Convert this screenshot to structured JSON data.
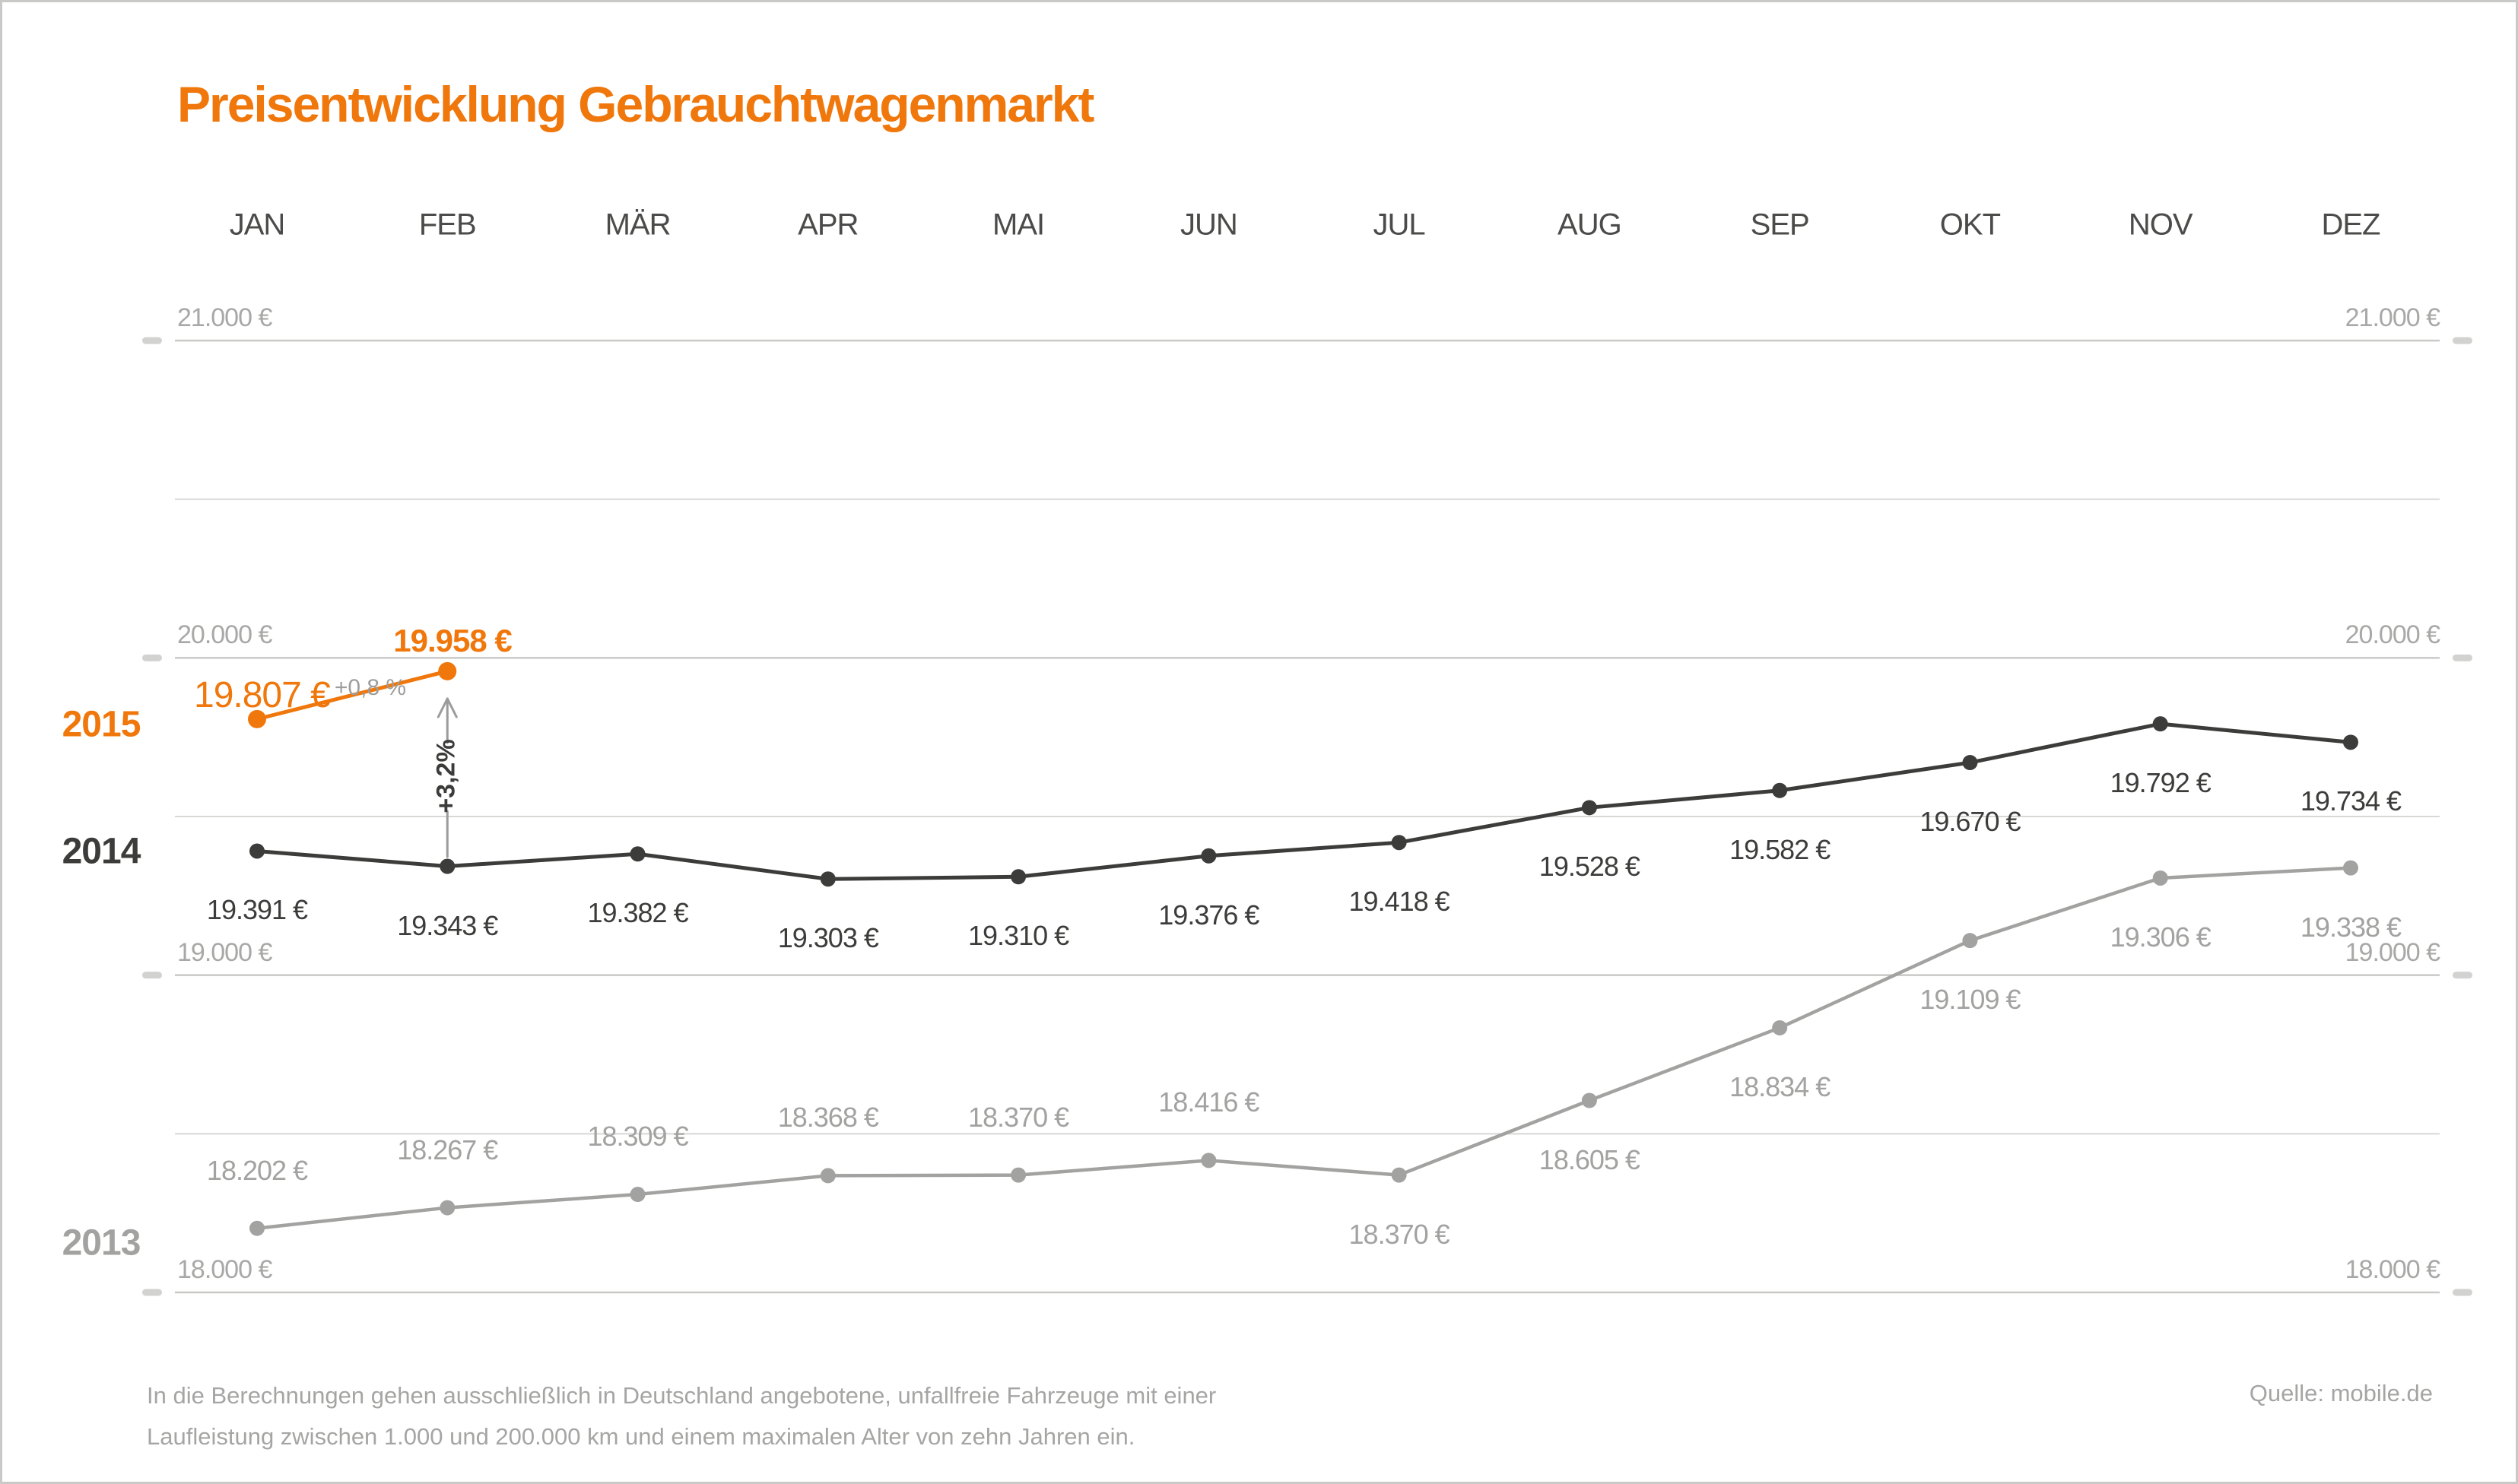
{
  "title": "Preisentwicklung Gebrauchtwagenmarkt",
  "months": [
    "JAN",
    "FEB",
    "MÄR",
    "APR",
    "MAI",
    "JUN",
    "JUL",
    "AUG",
    "SEP",
    "OKT",
    "NOV",
    "DEZ"
  ],
  "series_labels": {
    "y2015": "2015",
    "y2014": "2014",
    "y2013": "2013"
  },
  "annotations": {
    "jan_2015_value": "19.807 €",
    "jan_feb_change": "+0,8 %",
    "feb_2015_value": "19.958 €",
    "yoy_change": "+3,2%"
  },
  "footnote": {
    "line1": "In die Berechnungen gehen ausschließlich in Deutschland angebotene, unfallfreie Fahrzeuge mit einer",
    "line2": "Laufleistung zwischen 1.000 und 200.000 km und einem maximalen Alter von zehn Jahren ein."
  },
  "source": "Quelle: mobile.de",
  "colors": {
    "accent": "#f0770b",
    "dark": "#3c3c3b",
    "gray": "#a2a2a1",
    "axis_text": "#a8a8a7",
    "month_text": "#4b4b4a",
    "grid_major": "#c9c9c8",
    "grid_minor": "#d8d8d7",
    "tick": "#d2d2d1",
    "arrow": "#9b9b9a"
  },
  "chart_data": {
    "type": "line",
    "categories": [
      "JAN",
      "FEB",
      "MÄR",
      "APR",
      "MAI",
      "JUN",
      "JUL",
      "AUG",
      "SEP",
      "OKT",
      "NOV",
      "DEZ"
    ],
    "series": [
      {
        "name": "2015",
        "color": "#f0770b",
        "values": [
          19807,
          19958
        ],
        "labels": [
          "19.807 €",
          "19.958 €"
        ]
      },
      {
        "name": "2014",
        "color": "#3c3c3b",
        "values": [
          19391,
          19343,
          19382,
          19303,
          19310,
          19376,
          19418,
          19528,
          19582,
          19670,
          19792,
          19734
        ],
        "labels": [
          "19.391 €",
          "19.343 €",
          "19.382 €",
          "19.303 €",
          "19.310 €",
          "19.376 €",
          "19.418 €",
          "19.528 €",
          "19.582 €",
          "19.670 €",
          "19.792 €",
          "19.734 €"
        ]
      },
      {
        "name": "2013",
        "color": "#a2a2a1",
        "values": [
          18202,
          18267,
          18309,
          18368,
          18370,
          18416,
          18370,
          18605,
          18834,
          19109,
          19306,
          19338
        ],
        "labels": [
          "18.202 €",
          "18.267 €",
          "18.309 €",
          "18.368 €",
          "18.370 €",
          "18.416 €",
          "18.370 €",
          "18.605 €",
          "18.834 €",
          "19.109 €",
          "19.306 €",
          "19.338 €"
        ]
      }
    ],
    "ylim": [
      18000,
      21000
    ],
    "yticks": [
      21000,
      20000,
      19000,
      18000
    ],
    "ytick_labels": [
      "21.000 €",
      "20.000 €",
      "19.000 €",
      "18.000 €"
    ],
    "minor_yticks": [
      20500,
      19500,
      18500
    ],
    "grid": true,
    "legend_position": "left-of-lines",
    "annotation_notes": "2015 FEB vs 2014 FEB change +3,2%; 2015 JAN to FEB change +0,8 %"
  }
}
